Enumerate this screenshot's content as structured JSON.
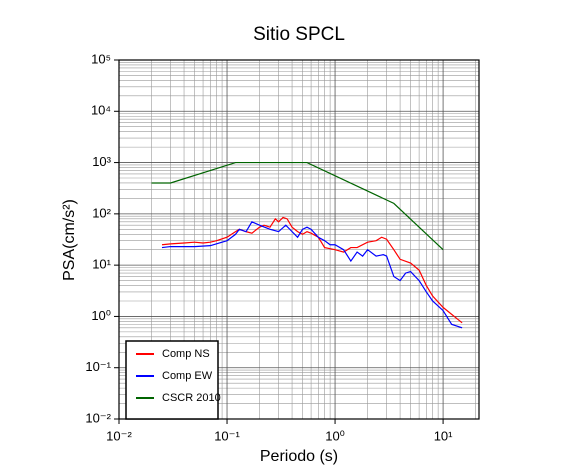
{
  "chart_data": {
    "type": "line",
    "title": "Sitio SPCL",
    "x_label": "Periodo (s)",
    "y_label": "PSA(cm/s²)",
    "xlog": true,
    "ylog": true,
    "grid": true,
    "xlim": [
      0.01,
      21.5
    ],
    "ylim": [
      0.01,
      100000
    ],
    "xticks": [
      {
        "value": 0.01,
        "label": "10⁻²"
      },
      {
        "value": 0.1,
        "label": "10⁻¹"
      },
      {
        "value": 1,
        "label": "10⁰"
      },
      {
        "value": 10,
        "label": "10¹"
      }
    ],
    "yticks": [
      {
        "value": 0.01,
        "label": "10⁻²"
      },
      {
        "value": 0.1,
        "label": "10⁻¹"
      },
      {
        "value": 1,
        "label": "10⁰"
      },
      {
        "value": 10,
        "label": "10¹"
      },
      {
        "value": 100,
        "label": "10²"
      },
      {
        "value": 1000,
        "label": "10³"
      },
      {
        "value": 10000,
        "label": "10⁴"
      },
      {
        "value": 100000,
        "label": "10⁵"
      }
    ],
    "legend": "lower left",
    "series": [
      {
        "name": "Comp NS",
        "color": "#ff0000",
        "x": [
          0.025,
          0.03,
          0.04,
          0.05,
          0.06,
          0.07,
          0.08,
          0.1,
          0.12,
          0.13,
          0.15,
          0.17,
          0.2,
          0.22,
          0.25,
          0.28,
          0.3,
          0.33,
          0.36,
          0.4,
          0.45,
          0.5,
          0.55,
          0.6,
          0.7,
          0.8,
          1.0,
          1.2,
          1.4,
          1.6,
          2.0,
          2.4,
          2.7,
          3.0,
          3.5,
          4.0,
          5.0,
          6.0,
          7.0,
          8.0,
          10,
          15
        ],
        "values": [
          25,
          26,
          27,
          28,
          27,
          28,
          30,
          35,
          45,
          50,
          45,
          42,
          55,
          60,
          55,
          80,
          70,
          85,
          80,
          55,
          45,
          40,
          45,
          42,
          35,
          22,
          20,
          18,
          22,
          22,
          28,
          30,
          35,
          32,
          20,
          13,
          11,
          8,
          4,
          2.5,
          1.5,
          0.75
        ]
      },
      {
        "name": "Comp EW",
        "color": "#0000ff",
        "x": [
          0.025,
          0.03,
          0.05,
          0.07,
          0.08,
          0.1,
          0.12,
          0.13,
          0.15,
          0.17,
          0.2,
          0.25,
          0.3,
          0.35,
          0.4,
          0.45,
          0.5,
          0.55,
          0.6,
          0.7,
          0.8,
          0.9,
          1.0,
          1.2,
          1.4,
          1.6,
          1.8,
          2.0,
          2.4,
          2.8,
          3.0,
          3.5,
          4.0,
          4.5,
          5.0,
          6.0,
          7.0,
          8.0,
          10,
          12,
          15
        ],
        "values": [
          22,
          23,
          23,
          24,
          26,
          30,
          40,
          50,
          45,
          70,
          60,
          50,
          45,
          60,
          45,
          35,
          50,
          55,
          50,
          35,
          30,
          25,
          25,
          20,
          12,
          18,
          15,
          20,
          15,
          16,
          15,
          6,
          5,
          7,
          7.5,
          5,
          3,
          2,
          1.3,
          0.7,
          0.6
        ]
      },
      {
        "name": "CSCR 2010",
        "color": "#006400",
        "x": [
          0.02,
          0.03,
          0.12,
          0.55,
          3.5,
          10
        ],
        "values": [
          400,
          400,
          1000,
          1000,
          160,
          20
        ]
      }
    ]
  }
}
